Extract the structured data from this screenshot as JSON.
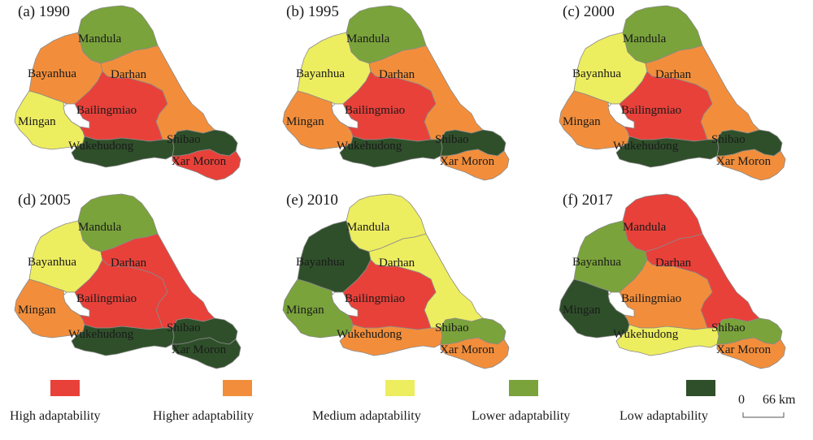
{
  "colors": {
    "high": "#e8413a",
    "higher": "#f28e3b",
    "medium": "#eded60",
    "lower": "#7aa33b",
    "low": "#2f4f2a"
  },
  "labels": {
    "mandula": "Mandula",
    "bayanhua": "Bayanhua",
    "darhan": "Darhan",
    "mingan": "Mingan",
    "bailingmiao": "Bailingmiao",
    "wukehudong": "Wukehudong",
    "shibao": "Shibao",
    "xarmoron": "Xar Moron"
  },
  "panels": [
    {
      "title": "(a) 1990",
      "classes": {
        "mandula": "lower",
        "bayanhua": "higher",
        "darhan": "higher",
        "mingan": "medium",
        "bailingmiao": "high",
        "wukehudong": "low",
        "shibao": "low",
        "xarmoron": "high"
      }
    },
    {
      "title": "(b) 1995",
      "classes": {
        "mandula": "lower",
        "bayanhua": "medium",
        "darhan": "higher",
        "mingan": "higher",
        "bailingmiao": "high",
        "wukehudong": "low",
        "shibao": "low",
        "xarmoron": "higher"
      }
    },
    {
      "title": "(c) 2000",
      "classes": {
        "mandula": "lower",
        "bayanhua": "medium",
        "darhan": "higher",
        "mingan": "higher",
        "bailingmiao": "high",
        "wukehudong": "low",
        "shibao": "low",
        "xarmoron": "higher"
      }
    },
    {
      "title": "(d) 2005",
      "classes": {
        "mandula": "lower",
        "bayanhua": "medium",
        "darhan": "high",
        "mingan": "higher",
        "bailingmiao": "high",
        "wukehudong": "low",
        "shibao": "low",
        "xarmoron": "low"
      }
    },
    {
      "title": "(e) 2010",
      "classes": {
        "mandula": "medium",
        "bayanhua": "low",
        "darhan": "medium",
        "mingan": "lower",
        "bailingmiao": "high",
        "wukehudong": "higher",
        "shibao": "lower",
        "xarmoron": "higher"
      }
    },
    {
      "title": "(f) 2017",
      "classes": {
        "mandula": "high",
        "bayanhua": "lower",
        "darhan": "high",
        "mingan": "low",
        "bailingmiao": "higher",
        "wukehudong": "medium",
        "shibao": "lower",
        "xarmoron": "higher"
      }
    }
  ],
  "legend": [
    {
      "key": "high",
      "label": "High adaptability"
    },
    {
      "key": "higher",
      "label": "Higher adaptability"
    },
    {
      "key": "medium",
      "label": "Medium adaptability"
    },
    {
      "key": "lower",
      "label": "Lower adaptability"
    },
    {
      "key": "low",
      "label": "Low adaptability"
    }
  ],
  "scale": {
    "zero": "0",
    "distance": "66 km"
  }
}
